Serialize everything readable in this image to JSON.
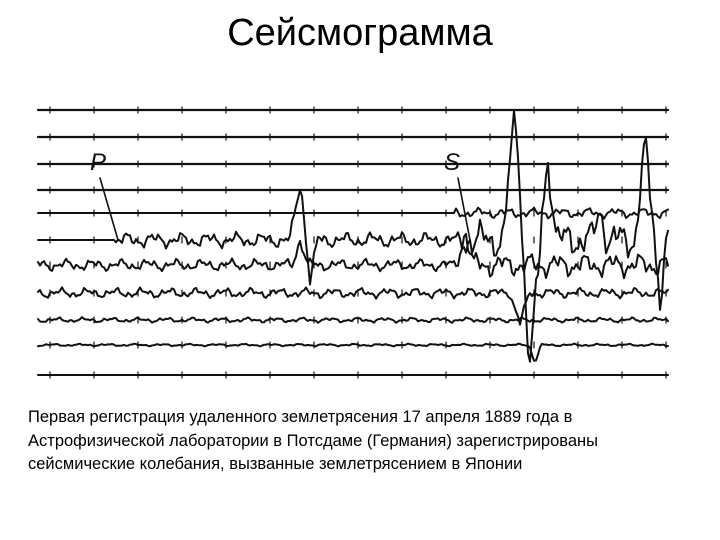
{
  "title": "Сейсмограмма",
  "figure": {
    "labels": [
      "P",
      "S"
    ]
  },
  "caption": {
    "lines": [
      "Первая регистрация удаленного землетрясения 17 апреля 1889 года в",
      "Астрофизической лаборатории в Потсдаме (Германия) зарегистрированы",
      "сейсмические колебания, вызванные землетрясением в Японии"
    ]
  }
}
